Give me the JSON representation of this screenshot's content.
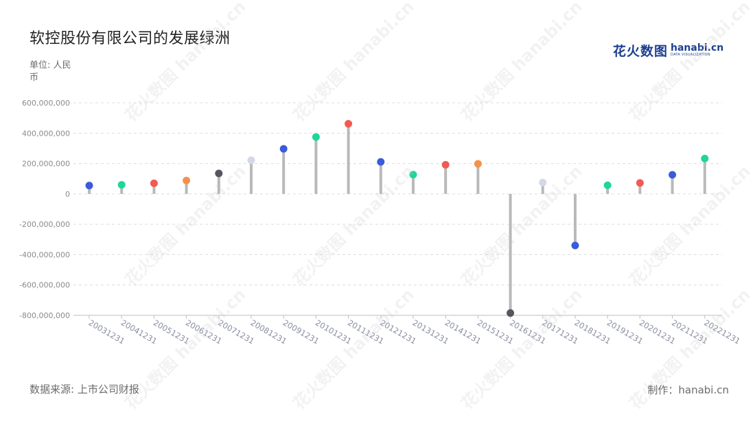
{
  "header": {
    "title": "软控股份有限公司的发展绿洲",
    "unit": "单位: 人民币"
  },
  "logo": {
    "cn": "花火数图",
    "en": "hanabi.cn",
    "en_sub": "DATA VISUALIZATION",
    "color": "#1d3f8f"
  },
  "footer": {
    "source": "数据来源: 上市公司财报",
    "credit": "制作：hanabi.cn"
  },
  "watermark": {
    "text": "花火数图 hanabi.cn"
  },
  "chart_data": {
    "type": "lollipop",
    "title": "软控股份有限公司的发展绿洲",
    "ylabel": "单位: 人民币",
    "ylim": [
      -800000000,
      600000000
    ],
    "yticks": [
      600000000,
      400000000,
      200000000,
      0,
      -200000000,
      -400000000,
      -600000000,
      -800000000
    ],
    "ytick_labels": [
      "600,000,000",
      "400,000,000",
      "200,000,000",
      "0",
      "-200,000,000",
      "-400,000,000",
      "-600,000,000",
      "-800,000,000"
    ],
    "grid": true,
    "stem_color": "#b9b9b9",
    "categories": [
      "20031231",
      "20041231",
      "20051231",
      "20061231",
      "20071231",
      "20081231",
      "20091231",
      "20101231",
      "20111231",
      "20121231",
      "20131231",
      "20141231",
      "20151231",
      "20161231",
      "20171231",
      "20181231",
      "20191231",
      "20201231",
      "20211231",
      "20221231"
    ],
    "values": [
      55000000,
      60000000,
      70000000,
      88000000,
      135000000,
      222000000,
      297000000,
      375000000,
      462000000,
      211000000,
      127000000,
      192000000,
      198000000,
      -785000000,
      75000000,
      -340000000,
      57000000,
      72000000,
      126000000,
      233000000
    ],
    "colors": [
      "#3b5bdb",
      "#1fd69a",
      "#f25a52",
      "#f5914a",
      "#57565f",
      "#d4d9e6",
      "#3b5bdb",
      "#1fd69a",
      "#f25a52",
      "#3b5bdb",
      "#1fd69a",
      "#f25a52",
      "#f5914a",
      "#57565f",
      "#d4d9e6",
      "#3b5bdb",
      "#1fd69a",
      "#f25a52",
      "#3b5bdb",
      "#1fd69a"
    ]
  }
}
